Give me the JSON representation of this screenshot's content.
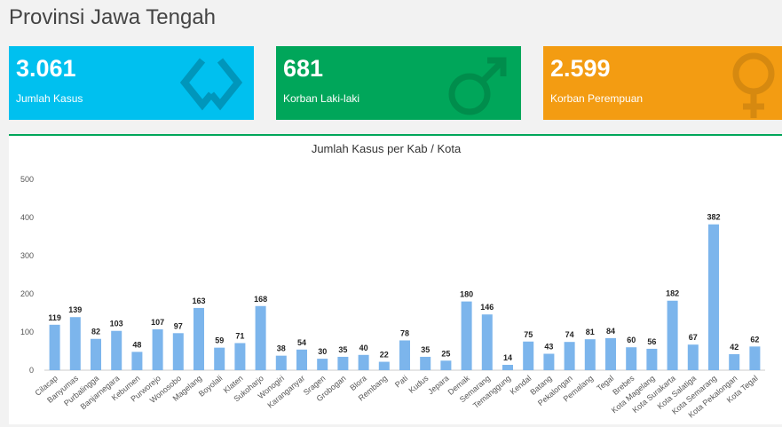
{
  "header": {
    "title": "Provinsi Jawa Tengah"
  },
  "cards": [
    {
      "value": "3.061",
      "label": "Jumlah Kasus"
    },
    {
      "value": "681",
      "label": "Korban Laki-laki"
    },
    {
      "value": "2.599",
      "label": "Korban Perempuan"
    }
  ],
  "chart_data": {
    "type": "bar",
    "title": "Jumlah Kasus per Kab / Kota",
    "color": "#7cb5ec",
    "categories": [
      "Cilacap",
      "Banyumas",
      "Purbalingga",
      "Banjarnegara",
      "Kebumen",
      "Purworejo",
      "Wonosobo",
      "Magelang",
      "Boyolali",
      "Klaten",
      "Sukoharjo",
      "Wonogiri",
      "Karanganyar",
      "Sragen",
      "Grobogan",
      "Blora",
      "Rembang",
      "Pati",
      "Kudus",
      "Jepara",
      "Demak",
      "Semarang",
      "Temanggung",
      "Kendal",
      "Batang",
      "Pekalongan",
      "Pemalang",
      "Tegal",
      "Brebes",
      "Kota Magelang",
      "Kota Surakarta",
      "Kota Salatiga",
      "Kota Semarang",
      "Kota Pekalongan",
      "Kota Tegal"
    ],
    "values": [
      119,
      139,
      82,
      103,
      48,
      107,
      97,
      163,
      59,
      71,
      168,
      38,
      54,
      30,
      35,
      40,
      22,
      78,
      35,
      25,
      180,
      146,
      14,
      75,
      43,
      74,
      81,
      84,
      60,
      56,
      182,
      67,
      382,
      42,
      62
    ],
    "ylim": [
      0,
      500
    ],
    "yticks": [
      0,
      100,
      200,
      300,
      400,
      500
    ],
    "grid": false
  }
}
